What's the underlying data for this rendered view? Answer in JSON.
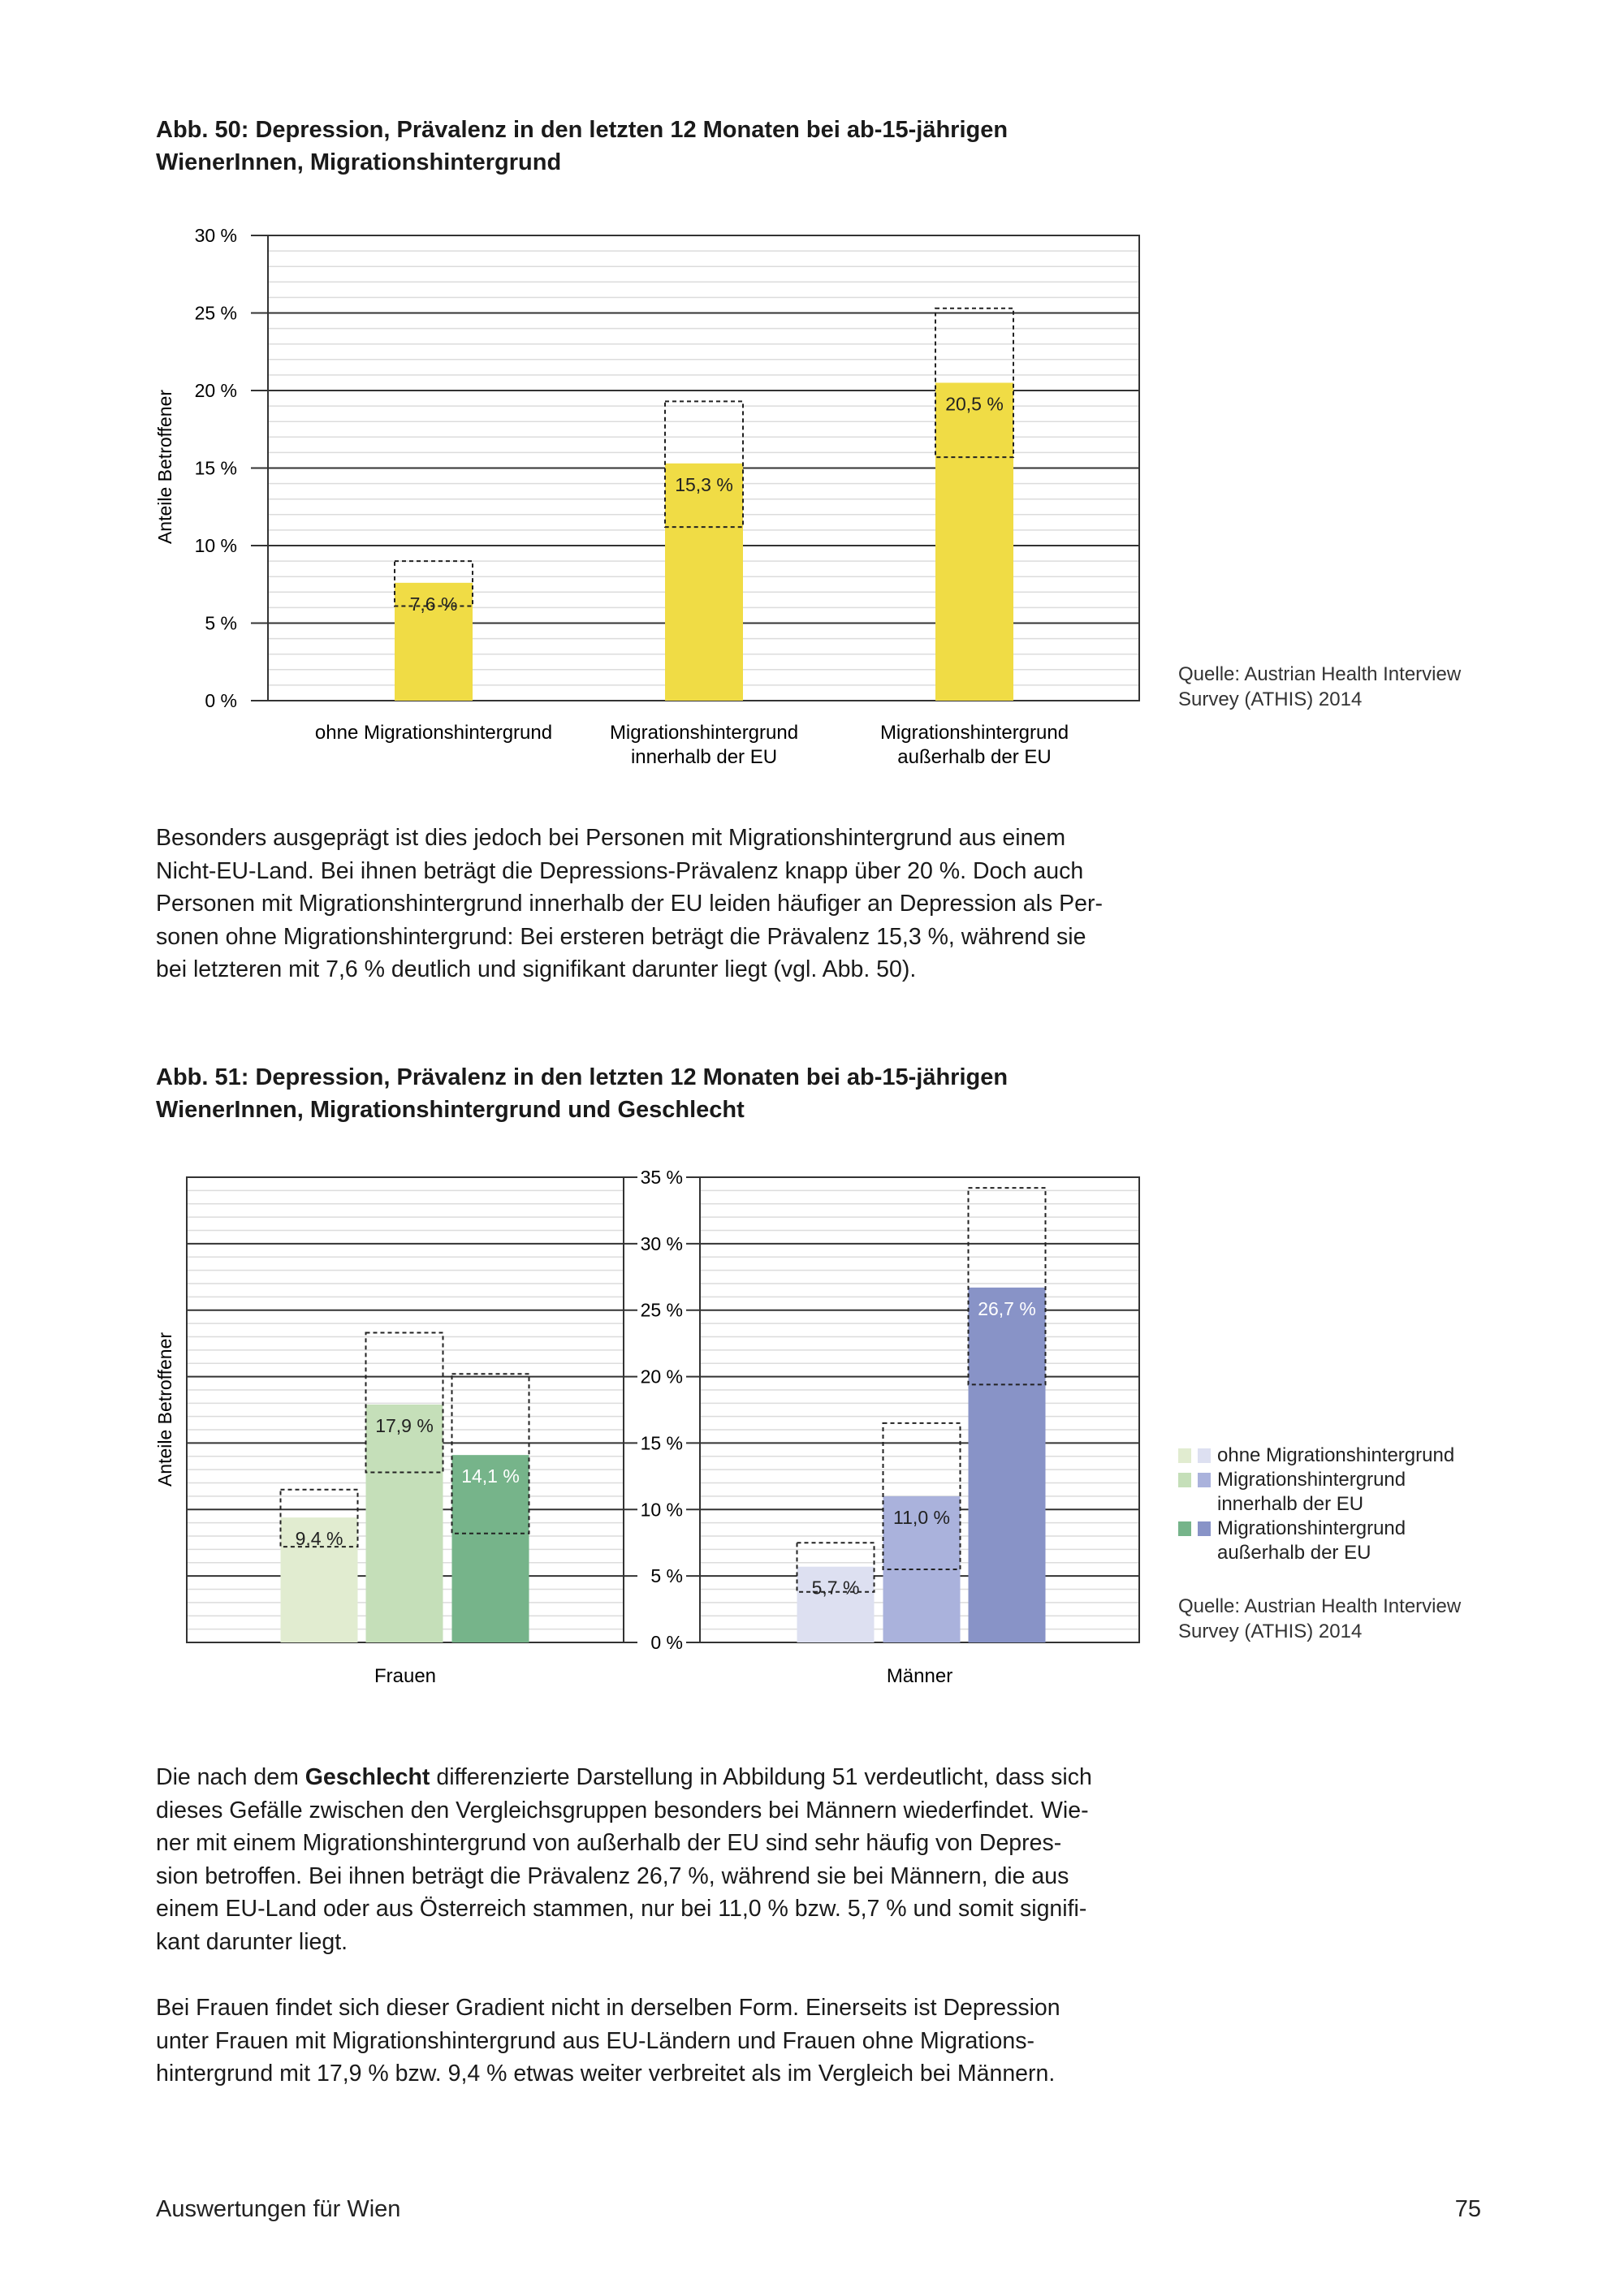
{
  "figure50": {
    "title_lines": [
      "Abb. 50: Depression, Prävalenz in den letzten 12 Monaten bei ab-15-jährigen",
      "WienerInnen, Migrationshintergrund"
    ],
    "source_lines": [
      "Quelle: Austrian Health Interview",
      "Survey (ATHIS) 2014"
    ]
  },
  "paragraph1": [
    "Besonders ausgeprägt ist dies jedoch bei Personen mit Migrationshintergrund aus einem",
    "Nicht-EU-Land. Bei ihnen beträgt die Depressions-Prävalenz knapp über 20 %. Doch auch",
    "Personen mit Migrationshintergrund innerhalb der EU leiden häufiger an Depression als Per-",
    "sonen ohne Migrationshintergrund: Bei ersteren beträgt die Prävalenz 15,3 %, während sie",
    "bei letzteren mit 7,6 % deutlich und signifikant darunter liegt (vgl. Abb. 50)."
  ],
  "figure51": {
    "title_lines": [
      "Abb. 51: Depression, Prävalenz in den letzten 12 Monaten bei ab-15-jährigen",
      "WienerInnen, Migrationshintergrund und Geschlecht"
    ],
    "legend": [
      {
        "label_lines": [
          "ohne Migrationshintergrund"
        ],
        "colors": [
          "#e1ecd0",
          "#dde0f1"
        ]
      },
      {
        "label_lines": [
          "Migrationshintergrund",
          "innerhalb der EU"
        ],
        "colors": [
          "#c5dfb9",
          "#aab2dc"
        ]
      },
      {
        "label_lines": [
          "Migrationshintergrund",
          "außerhalb der EU"
        ],
        "colors": [
          "#76b48a",
          "#8893c7"
        ]
      }
    ],
    "source_lines": [
      "Quelle: Austrian Health Interview",
      "Survey (ATHIS) 2014"
    ]
  },
  "paragraph2": {
    "line1_pre": "Die nach dem ",
    "line1_bold": "Geschlecht",
    "line1_post": " differenzierte Darstellung in Abbildung 51 verdeutlicht, dass sich",
    "lines": [
      "dieses Gefälle zwischen den Vergleichsgruppen besonders bei Männern wiederfindet. Wie-",
      "ner mit einem Migrationshintergrund von außerhalb der EU sind sehr häufig von Depres-",
      "sion betroffen. Bei ihnen beträgt die Prävalenz 26,7 %, während sie bei Männern, die aus",
      "einem EU-Land oder aus Österreich stammen, nur bei 11,0 % bzw. 5,7 % und somit signifi-",
      "kant darunter liegt."
    ]
  },
  "paragraph3": [
    "Bei Frauen findet sich dieser Gradient nicht in derselben Form. Einerseits ist Depression",
    "unter Frauen mit Migrationshintergrund aus EU-Ländern und Frauen ohne Migrations-",
    "hintergrund mit 17,9 % bzw. 9,4 % etwas weiter verbreitet als im Vergleich bei Männern."
  ],
  "footer": {
    "left": "Auswertungen für Wien",
    "page": "75"
  },
  "chart_data": [
    {
      "type": "bar",
      "title": "Abb. 50",
      "ylabel": "Anteile Betroffener",
      "ylim": [
        0,
        30
      ],
      "yticks": [
        "0 %",
        "5 %",
        "10 %",
        "15 %",
        "20 %",
        "25 %",
        "30 %"
      ],
      "ytick_values": [
        0,
        5,
        10,
        15,
        20,
        25,
        30
      ],
      "grid": "minor every 1 %, major every 5 %",
      "categories": [
        [
          "ohne Migrationshintergrund"
        ],
        [
          "Migrationshintergrund",
          "innerhalb der EU"
        ],
        [
          "Migrationshintergrund",
          "außerhalb der EU"
        ]
      ],
      "values": [
        7.6,
        15.3,
        20.5
      ],
      "labels": [
        "7,6 %",
        "15,3 %",
        "20,5 %"
      ],
      "ci_low": [
        6.1,
        11.2,
        15.7
      ],
      "ci_high": [
        9.0,
        19.3,
        25.3
      ],
      "colors": [
        "#f0dc45",
        "#f0dc45",
        "#f0dc45"
      ],
      "label_colors": [
        "#222",
        "#222",
        "#222"
      ]
    },
    {
      "type": "bar",
      "title": "Abb. 51",
      "ylabel": "Anteile Betroffener",
      "ylim": [
        0,
        35
      ],
      "yticks": [
        "0 %",
        "5 %",
        "10 %",
        "15 %",
        "20 %",
        "25 %",
        "30 %",
        "35 %"
      ],
      "ytick_values": [
        0,
        5,
        10,
        15,
        20,
        25,
        30,
        35
      ],
      "grid": "minor every 1 %, major every 5 %",
      "panels": [
        {
          "name": "Frauen",
          "series": [
            "ohne Migrationshintergrund",
            "Migrationshintergrund innerhalb der EU",
            "Migrationshintergrund außerhalb der EU"
          ],
          "values": [
            9.4,
            17.9,
            14.1
          ],
          "labels": [
            "9,4 %",
            "17,9 %",
            "14,1 %"
          ],
          "ci_low": [
            7.2,
            12.8,
            8.2
          ],
          "ci_high": [
            11.5,
            23.3,
            20.2
          ],
          "colors": [
            "#e1ecd0",
            "#c5dfb9",
            "#76b48a"
          ],
          "label_colors": [
            "#222",
            "#222",
            "#ffffff"
          ]
        },
        {
          "name": "Männer",
          "series": [
            "ohne Migrationshintergrund",
            "Migrationshintergrund innerhalb der EU",
            "Migrationshintergrund außerhalb der EU"
          ],
          "values": [
            5.7,
            11.0,
            26.7
          ],
          "labels": [
            "5,7 %",
            "11,0 %",
            "26,7 %"
          ],
          "ci_low": [
            3.8,
            5.5,
            19.4
          ],
          "ci_high": [
            7.5,
            16.5,
            34.2
          ],
          "colors": [
            "#dde0f1",
            "#aab2dc",
            "#8893c7"
          ],
          "label_colors": [
            "#222",
            "#222",
            "#ffffff"
          ]
        }
      ],
      "legend_position": "right"
    }
  ]
}
